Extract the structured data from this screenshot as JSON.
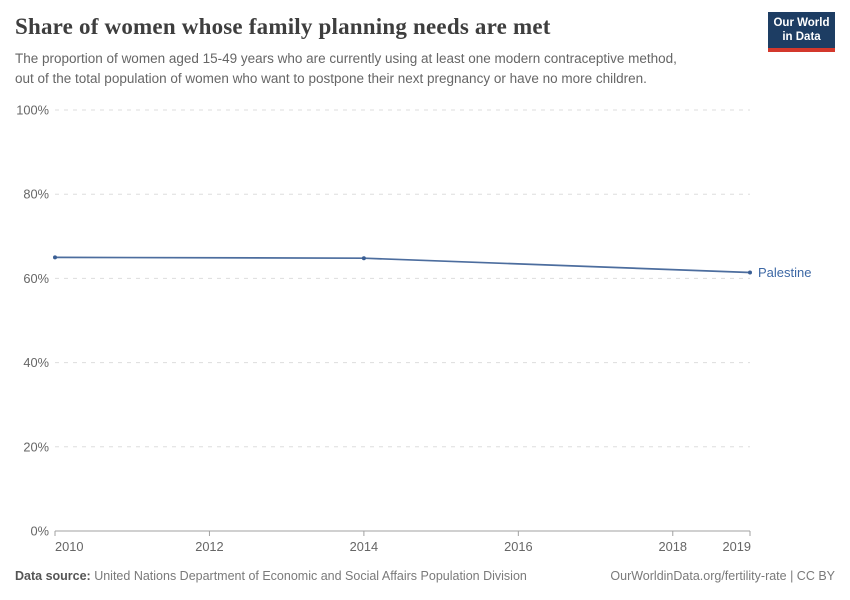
{
  "header": {
    "title": "Share of women whose family planning needs are met",
    "subtitle_line1": "The proportion of women aged 15-49 years who are currently using at least one modern contraceptive method,",
    "subtitle_line2": "out of the total population of women who want to postpone their next pregnancy or have no more children.",
    "logo": {
      "line1": "Our World",
      "line2": "in Data"
    }
  },
  "chart_data": {
    "type": "line",
    "title": "Share of women whose family planning needs are met",
    "xlabel": "",
    "ylabel": "",
    "xlim": [
      2010,
      2019
    ],
    "ylim": [
      0,
      100
    ],
    "x_ticks": [
      2010,
      2012,
      2014,
      2016,
      2018,
      2019
    ],
    "y_ticks": [
      0,
      20,
      40,
      60,
      80,
      100
    ],
    "y_tick_suffix": "%",
    "grid": "horizontal-dashed",
    "legend_position": "line-end-label",
    "series": [
      {
        "name": "Palestine",
        "color": "#4c6d9e",
        "marker_color": "#3a5e94",
        "label_color": "#3d68a5",
        "points": [
          {
            "x": 2010,
            "y": 65.0
          },
          {
            "x": 2014,
            "y": 64.8
          },
          {
            "x": 2019,
            "y": 61.4
          }
        ]
      }
    ],
    "colors": {
      "gridline": "#dddddd",
      "axis": "#a1a1a1",
      "tick_label": "#666666"
    }
  },
  "footer": {
    "source_label": "Data source:",
    "source_text": " United Nations Department of Economic and Social Affairs Population Division",
    "license_text": "OurWorldinData.org/fertility-rate | CC BY"
  }
}
